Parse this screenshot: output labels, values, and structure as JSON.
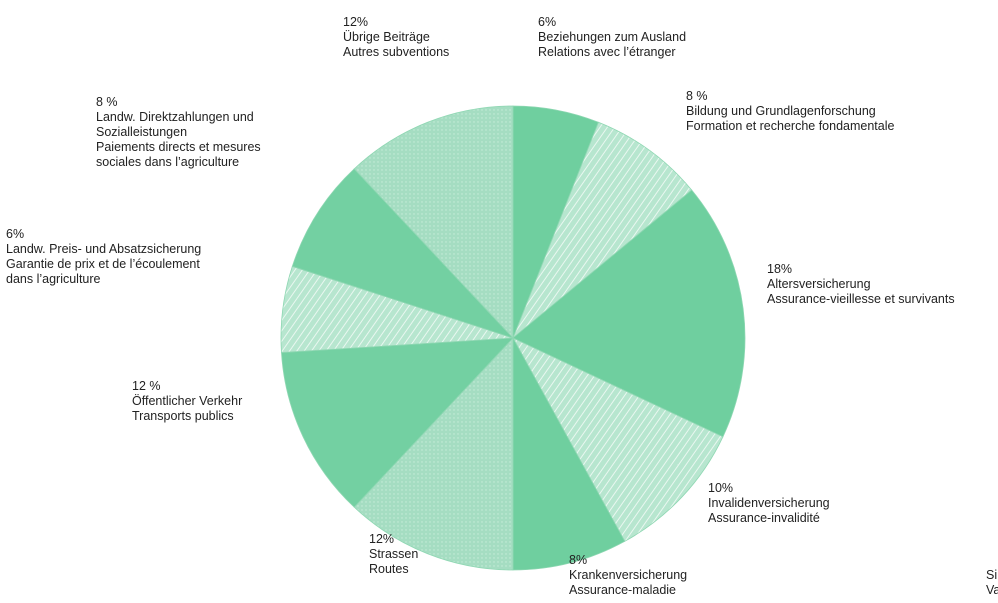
{
  "chart_data": {
    "type": "pie",
    "title": "",
    "start_angle_deg": 0,
    "direction": "clockwise",
    "grid": false,
    "legend": "none",
    "slices": [
      {
        "pct_label": "6%",
        "value": 6,
        "de": "Beziehungen zum Ausland",
        "fr": "Relations avec l’étranger",
        "color": "#6fcf9f",
        "pattern": "solid"
      },
      {
        "pct_label": "8 %",
        "value": 8,
        "de": "Bildung und Grundlagenforschung",
        "fr": "Formation et recherche fondamentale",
        "color": "#a9dec4",
        "pattern": "hatch"
      },
      {
        "pct_label": "18%",
        "value": 18,
        "de": "Altersversicherung",
        "fr": "Assurance-vieillesse et survivants",
        "color": "#6fcf9f",
        "pattern": "solid"
      },
      {
        "pct_label": "10%",
        "value": 10,
        "de": "Invalidenversicherung",
        "fr": "Assurance-invalidité",
        "color": "#b2e3cb",
        "pattern": "hatch"
      },
      {
        "pct_label": "8%",
        "value": 8,
        "de": "Krankenversicherung",
        "fr": "Assurance-maladie",
        "color": "#6fcf9f",
        "pattern": "solid"
      },
      {
        "pct_label": "12%",
        "value": 12,
        "de": "Strassen",
        "fr": "Routes",
        "color": "#9bdab9",
        "pattern": "light"
      },
      {
        "pct_label": "12 %",
        "value": 12,
        "de": "Öffentlicher Verkehr",
        "fr": "Transports publics",
        "color": "#73d0a2",
        "pattern": "solid"
      },
      {
        "pct_label": "6%",
        "value": 6,
        "de": "Landw. Preis- und Absatzsicherung",
        "fr": "Garantie de prix et de l’écoulement",
        "fr2": "dans l’agriculture",
        "color": "#b2e3cb",
        "pattern": "hatch"
      },
      {
        "pct_label": "8 %",
        "value": 8,
        "de": "Landw. Direktzahlungen und",
        "de2": "Sozialleistungen",
        "fr": "Paiements directs et mesures",
        "fr2": "sociales dans l’agriculture",
        "color": "#73d0a2",
        "pattern": "solid"
      },
      {
        "pct_label": "12%",
        "value": 12,
        "de": "Übrige Beiträge",
        "fr": "Autres subventions",
        "color": "#a9dec4",
        "pattern": "light"
      }
    ]
  },
  "page": {
    "cut_text_1": "Si",
    "cut_text_2": "Va"
  }
}
